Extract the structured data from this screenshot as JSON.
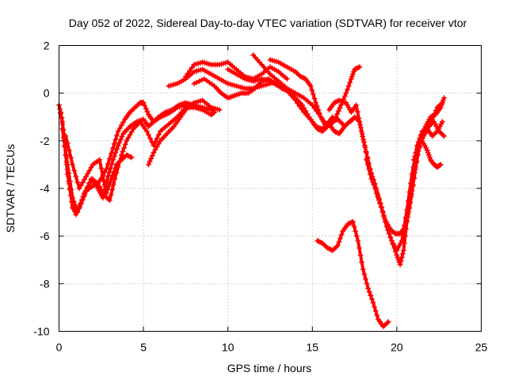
{
  "chart_data": {
    "type": "scatter",
    "title": "Day 052 of 2022, Sidereal Day-to-day VTEC variation (SDTVAR) for receiver vtor",
    "xlabel": "GPS time / hours",
    "ylabel": "SDTVAR / TECUs",
    "xlim": [
      0,
      25
    ],
    "ylim": [
      -10,
      2
    ],
    "x_ticks": [
      0,
      5,
      10,
      15,
      20,
      25
    ],
    "y_ticks": [
      -10,
      -8,
      -6,
      -4,
      -2,
      0,
      2
    ],
    "x_tick_labels": [
      "0",
      "5",
      "10",
      "15",
      "20",
      "25"
    ],
    "y_tick_labels": [
      "-10",
      "-8",
      "-6",
      "-4",
      "-2",
      "0",
      "2"
    ],
    "grid": true,
    "marker": "+",
    "color": "#ff0000",
    "series": [
      {
        "x": [
          0.0,
          0.2,
          0.4,
          0.6,
          0.8,
          1.0,
          1.2,
          1.5,
          1.8,
          2.0,
          2.3,
          2.6,
          2.9,
          3.2,
          3.5,
          3.8,
          4.2,
          4.6,
          5.0,
          5.3,
          5.6,
          6.0,
          6.3,
          6.6,
          7.0,
          7.5
        ],
        "y": [
          -0.5,
          -1.2,
          -2.6,
          -3.8,
          -4.8,
          -5.0,
          -4.8,
          -4.2,
          -3.8,
          -3.6,
          -4.0,
          -4.4,
          -3.5,
          -2.8,
          -2.2,
          -1.7,
          -1.4,
          -1.2,
          -1.1,
          -1.4,
          -1.2,
          -1.0,
          -0.9,
          -0.8,
          -0.6,
          -0.5
        ]
      },
      {
        "x": [
          0.1,
          0.3,
          0.5,
          0.8,
          1.0,
          1.3,
          1.6,
          2.0,
          2.4,
          2.8,
          3.2,
          3.5,
          3.9,
          4.2,
          4.5,
          4.8,
          5.0,
          5.3,
          5.6,
          5.9,
          6.3,
          6.7,
          7.1,
          7.5,
          8.0,
          8.5,
          9.0
        ],
        "y": [
          -0.8,
          -1.8,
          -3.4,
          -4.6,
          -5.1,
          -4.6,
          -4.1,
          -3.9,
          -3.7,
          -3.2,
          -2.3,
          -1.6,
          -1.1,
          -0.8,
          -0.6,
          -0.4,
          -0.4,
          -0.9,
          -1.2,
          -1.0,
          -0.8,
          -0.7,
          -0.5,
          -0.4,
          -0.5,
          -0.6,
          -0.7
        ]
      },
      {
        "x": [
          0.2,
          0.5,
          0.8,
          1.1,
          1.5,
          1.9,
          2.3,
          2.7,
          3.0,
          3.3,
          3.7,
          4.0,
          4.4,
          4.8,
          5.2,
          5.6,
          6.0,
          6.5,
          7.0,
          7.5,
          8.0,
          8.5,
          9.0,
          9.5
        ],
        "y": [
          -1.5,
          -3.0,
          -4.4,
          -5.0,
          -4.3,
          -3.6,
          -3.8,
          -4.3,
          -4.5,
          -3.6,
          -2.6,
          -2.0,
          -1.5,
          -1.2,
          -1.6,
          -2.2,
          -1.6,
          -1.3,
          -1.0,
          -0.6,
          -0.4,
          -0.3,
          -0.6,
          -0.7
        ]
      },
      {
        "x": [
          0.4,
          0.8,
          1.2,
          1.6,
          2.0,
          2.4,
          2.8,
          3.1,
          3.4,
          3.7,
          4.0,
          4.3
        ],
        "y": [
          -1.8,
          -3.0,
          -4.0,
          -3.5,
          -3.0,
          -2.8,
          -4.2,
          -3.6,
          -3.0,
          -2.8,
          -2.6,
          -2.7
        ]
      },
      {
        "x": [
          5.3,
          5.6,
          6.0,
          6.4,
          6.8,
          7.2,
          7.6,
          8.0,
          8.5,
          9.0,
          9.2
        ],
        "y": [
          -3.0,
          -2.5,
          -2.0,
          -1.7,
          -1.4,
          -1.0,
          -0.6,
          -0.6,
          -0.7,
          -0.9,
          -0.8
        ]
      },
      {
        "x": [
          6.5,
          7.0,
          7.5,
          8.0,
          8.5,
          9.0,
          9.5,
          10.0,
          10.5,
          11.0,
          11.5,
          12.0,
          12.5,
          13.0
        ],
        "y": [
          0.3,
          0.4,
          0.6,
          0.9,
          1.0,
          0.8,
          0.6,
          0.4,
          0.3,
          0.2,
          0.2,
          0.3,
          0.4,
          0.5
        ]
      },
      {
        "x": [
          7.5,
          8.0,
          8.5,
          9.0,
          9.5,
          10.0,
          10.5,
          11.0,
          11.5,
          12.0,
          12.5,
          13.0,
          13.5
        ],
        "y": [
          0.7,
          1.2,
          1.3,
          1.2,
          1.2,
          1.3,
          1.0,
          0.7,
          0.6,
          0.8,
          1.1,
          0.9,
          0.6
        ]
      },
      {
        "x": [
          8.0,
          8.6,
          9.2,
          9.6,
          10.0,
          10.4,
          10.8,
          11.2,
          11.6,
          12.0,
          12.4,
          12.8,
          13.2,
          13.6,
          14.0,
          14.4,
          14.8,
          15.2,
          15.6,
          16.0,
          16.2
        ],
        "y": [
          0.4,
          0.6,
          0.3,
          0.0,
          -0.2,
          -0.1,
          0.0,
          0.0,
          0.2,
          0.5,
          0.6,
          0.4,
          0.2,
          0.1,
          -0.2,
          -0.5,
          -1.0,
          -1.4,
          -1.5,
          -1.2,
          -1.0
        ]
      },
      {
        "x": [
          10.0,
          10.5,
          11.0,
          11.5,
          12.0,
          12.5,
          13.0,
          13.5,
          14.0,
          14.5,
          15.0,
          15.3,
          15.6,
          15.9,
          16.2,
          16.5,
          16.8
        ],
        "y": [
          1.0,
          0.8,
          0.6,
          0.5,
          0.6,
          0.5,
          0.3,
          0.1,
          -0.3,
          -0.8,
          -1.2,
          -1.5,
          -1.6,
          -1.4,
          -1.2,
          -1.1,
          -1.3
        ]
      },
      {
        "x": [
          11.5,
          12.0,
          12.5,
          13.0,
          13.5,
          14.0,
          14.5,
          15.0,
          15.5,
          15.8,
          16.0,
          16.3,
          16.6,
          16.9,
          17.2,
          17.4
        ],
        "y": [
          1.6,
          1.2,
          0.8,
          0.5,
          0.2,
          0.0,
          -0.2,
          -0.5,
          -1.0,
          -1.3,
          -1.3,
          -1.6,
          -1.7,
          -1.4,
          -1.2,
          -1.1
        ]
      },
      {
        "x": [
          12.5,
          13.0,
          13.5,
          14.0,
          14.3,
          14.6,
          14.9,
          15.2,
          15.5,
          15.8,
          16.1,
          16.4,
          16.7,
          17.0,
          17.3,
          17.5,
          17.8
        ],
        "y": [
          1.4,
          1.3,
          1.1,
          0.9,
          0.7,
          0.6,
          0.3,
          -0.4,
          -1.0,
          -1.4,
          -1.3,
          -1.0,
          -0.5,
          0.0,
          0.6,
          1.0,
          1.1
        ]
      },
      {
        "x": [
          16.0,
          16.3,
          16.6,
          17.0,
          17.3,
          17.6,
          17.9,
          18.2,
          18.5,
          18.8,
          19.1,
          19.4,
          19.7,
          20.0,
          20.2,
          20.4,
          20.6,
          20.8,
          21.0,
          21.2,
          21.5,
          21.8,
          22.1,
          22.4,
          22.7
        ],
        "y": [
          -0.7,
          -0.4,
          -0.3,
          -0.4,
          -0.8,
          -0.5,
          -1.6,
          -2.5,
          -3.4,
          -4.2,
          -4.8,
          -5.6,
          -6.2,
          -6.8,
          -7.2,
          -6.6,
          -5.4,
          -4.6,
          -3.6,
          -2.6,
          -1.9,
          -1.3,
          -1.1,
          -0.6,
          -0.4
        ]
      },
      {
        "x": [
          17.5,
          17.8,
          18.1,
          18.4,
          18.7,
          19.0,
          19.3,
          19.6,
          19.9,
          20.2,
          20.5,
          20.8,
          21.1,
          21.4,
          21.7,
          22.0,
          22.3,
          22.6,
          22.8
        ],
        "y": [
          -1.0,
          -1.2,
          -2.2,
          -3.2,
          -3.8,
          -4.6,
          -5.3,
          -5.7,
          -5.9,
          -5.9,
          -5.6,
          -4.6,
          -3.2,
          -2.0,
          -1.4,
          -1.0,
          -0.9,
          -0.6,
          -0.2
        ]
      },
      {
        "x": [
          18.2,
          18.5,
          18.8,
          19.1,
          19.4,
          19.7,
          20.0,
          20.3,
          20.6,
          20.9,
          21.2,
          21.5,
          21.8,
          22.1,
          22.4,
          22.7
        ],
        "y": [
          -2.8,
          -3.6,
          -4.1,
          -4.8,
          -5.6,
          -6.2,
          -6.6,
          -6.2,
          -4.9,
          -3.4,
          -2.2,
          -1.6,
          -1.5,
          -1.8,
          -1.6,
          -1.2
        ]
      },
      {
        "x": [
          21.0,
          21.3,
          21.6,
          21.9,
          22.2,
          22.5,
          22.8
        ],
        "y": [
          -2.8,
          -2.2,
          -1.8,
          -1.4,
          -1.2,
          -1.6,
          -1.8
        ]
      },
      {
        "x": [
          21.5,
          21.8,
          22.0,
          22.2,
          22.4,
          22.6
        ],
        "y": [
          -2.0,
          -2.4,
          -2.8,
          -3.0,
          -3.1,
          -3.0
        ]
      },
      {
        "x": [
          15.3,
          15.6,
          15.9,
          16.2,
          16.5,
          16.8,
          17.1,
          17.4,
          17.7,
          18.0,
          18.3,
          18.6,
          18.9,
          19.2,
          19.5
        ],
        "y": [
          -6.2,
          -6.3,
          -6.5,
          -6.6,
          -6.4,
          -5.8,
          -5.5,
          -5.4,
          -6.2,
          -7.4,
          -8.2,
          -8.8,
          -9.5,
          -9.8,
          -9.6
        ]
      }
    ]
  }
}
